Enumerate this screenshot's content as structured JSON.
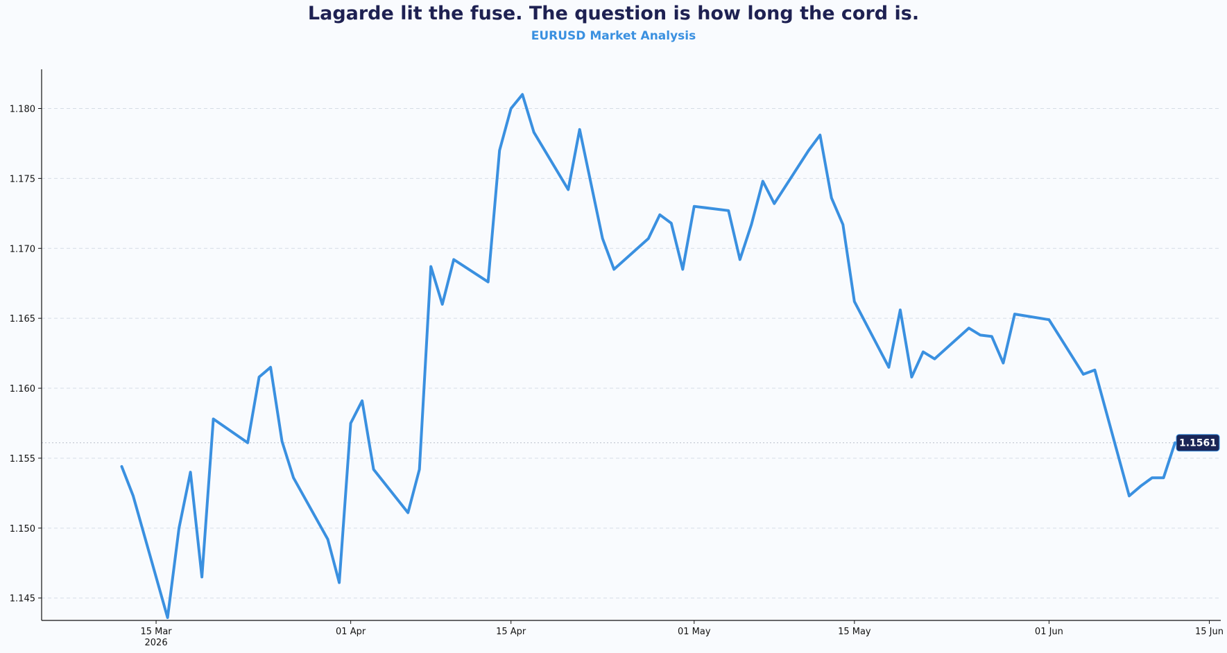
{
  "title": "Lagarde lit the fuse. The question is how long the cord is.",
  "subtitle": "EURUSD Market Analysis",
  "colors": {
    "line": "#3a90e0",
    "title": "#1e2152",
    "subtitle": "#3a90e0",
    "badge": "#1a2556",
    "grid": "#d5dce6"
  },
  "chart_data": {
    "type": "line",
    "xaxis": {
      "type": "date",
      "range": [
        "2026-03-05",
        "2026-06-16"
      ],
      "ticks": [
        {
          "date": "2026-03-15",
          "label": "15 Mar",
          "sublabel": "2026"
        },
        {
          "date": "2026-04-01",
          "label": "01 Apr",
          "sublabel": ""
        },
        {
          "date": "2026-04-15",
          "label": "15 Apr",
          "sublabel": ""
        },
        {
          "date": "2026-05-01",
          "label": "01 May",
          "sublabel": ""
        },
        {
          "date": "2026-05-15",
          "label": "15 May",
          "sublabel": ""
        },
        {
          "date": "2026-06-01",
          "label": "01 Jun",
          "sublabel": ""
        },
        {
          "date": "2026-06-15",
          "label": "15 Jun",
          "sublabel": ""
        }
      ]
    },
    "yaxis": {
      "range": [
        1.1434,
        1.1828
      ],
      "ticks": [
        1.145,
        1.15,
        1.155,
        1.16,
        1.165,
        1.17,
        1.175,
        1.18
      ]
    },
    "grid": "horizontal dashed",
    "last_value_label": "1.1561",
    "last_value": 1.1561,
    "series": [
      {
        "points": [
          [
            "2026-03-12",
            1.1544
          ],
          [
            "2026-03-13",
            1.1523
          ],
          [
            "2026-03-16",
            1.1436
          ],
          [
            "2026-03-17",
            1.15
          ],
          [
            "2026-03-18",
            1.154
          ],
          [
            "2026-03-19",
            1.1465
          ],
          [
            "2026-03-20",
            1.1578
          ],
          [
            "2026-03-23",
            1.1561
          ],
          [
            "2026-03-24",
            1.1608
          ],
          [
            "2026-03-25",
            1.1615
          ],
          [
            "2026-03-26",
            1.1562
          ],
          [
            "2026-03-27",
            1.1536
          ],
          [
            "2026-03-30",
            1.1492
          ],
          [
            "2026-03-31",
            1.1461
          ],
          [
            "2026-04-01",
            1.1575
          ],
          [
            "2026-04-02",
            1.1591
          ],
          [
            "2026-04-03",
            1.1542
          ],
          [
            "2026-04-06",
            1.1511
          ],
          [
            "2026-04-07",
            1.1542
          ],
          [
            "2026-04-08",
            1.1687
          ],
          [
            "2026-04-09",
            1.166
          ],
          [
            "2026-04-10",
            1.1692
          ],
          [
            "2026-04-13",
            1.1676
          ],
          [
            "2026-04-14",
            1.177
          ],
          [
            "2026-04-15",
            1.18
          ],
          [
            "2026-04-16",
            1.181
          ],
          [
            "2026-04-17",
            1.1783
          ],
          [
            "2026-04-20",
            1.1742
          ],
          [
            "2026-04-21",
            1.1785
          ],
          [
            "2026-04-23",
            1.1707
          ],
          [
            "2026-04-24",
            1.1685
          ],
          [
            "2026-04-27",
            1.1707
          ],
          [
            "2026-04-28",
            1.1724
          ],
          [
            "2026-04-29",
            1.1718
          ],
          [
            "2026-04-30",
            1.1685
          ],
          [
            "2026-05-01",
            1.173
          ],
          [
            "2026-05-04",
            1.1727
          ],
          [
            "2026-05-05",
            1.1692
          ],
          [
            "2026-05-06",
            1.1717
          ],
          [
            "2026-05-07",
            1.1748
          ],
          [
            "2026-05-08",
            1.1732
          ],
          [
            "2026-05-11",
            1.177
          ],
          [
            "2026-05-12",
            1.1781
          ],
          [
            "2026-05-13",
            1.1736
          ],
          [
            "2026-05-14",
            1.1717
          ],
          [
            "2026-05-15",
            1.1662
          ],
          [
            "2026-05-18",
            1.1615
          ],
          [
            "2026-05-19",
            1.1656
          ],
          [
            "2026-05-20",
            1.1608
          ],
          [
            "2026-05-21",
            1.1626
          ],
          [
            "2026-05-22",
            1.1621
          ],
          [
            "2026-05-25",
            1.1643
          ],
          [
            "2026-05-26",
            1.1638
          ],
          [
            "2026-05-27",
            1.1637
          ],
          [
            "2026-05-28",
            1.1618
          ],
          [
            "2026-05-29",
            1.1653
          ],
          [
            "2026-06-01",
            1.1649
          ],
          [
            "2026-06-04",
            1.161
          ],
          [
            "2026-06-05",
            1.1613
          ],
          [
            "2026-06-08",
            1.1523
          ],
          [
            "2026-06-09",
            1.153
          ],
          [
            "2026-06-10",
            1.1536
          ],
          [
            "2026-06-11",
            1.1536
          ],
          [
            "2026-06-12",
            1.1561
          ]
        ]
      }
    ]
  }
}
